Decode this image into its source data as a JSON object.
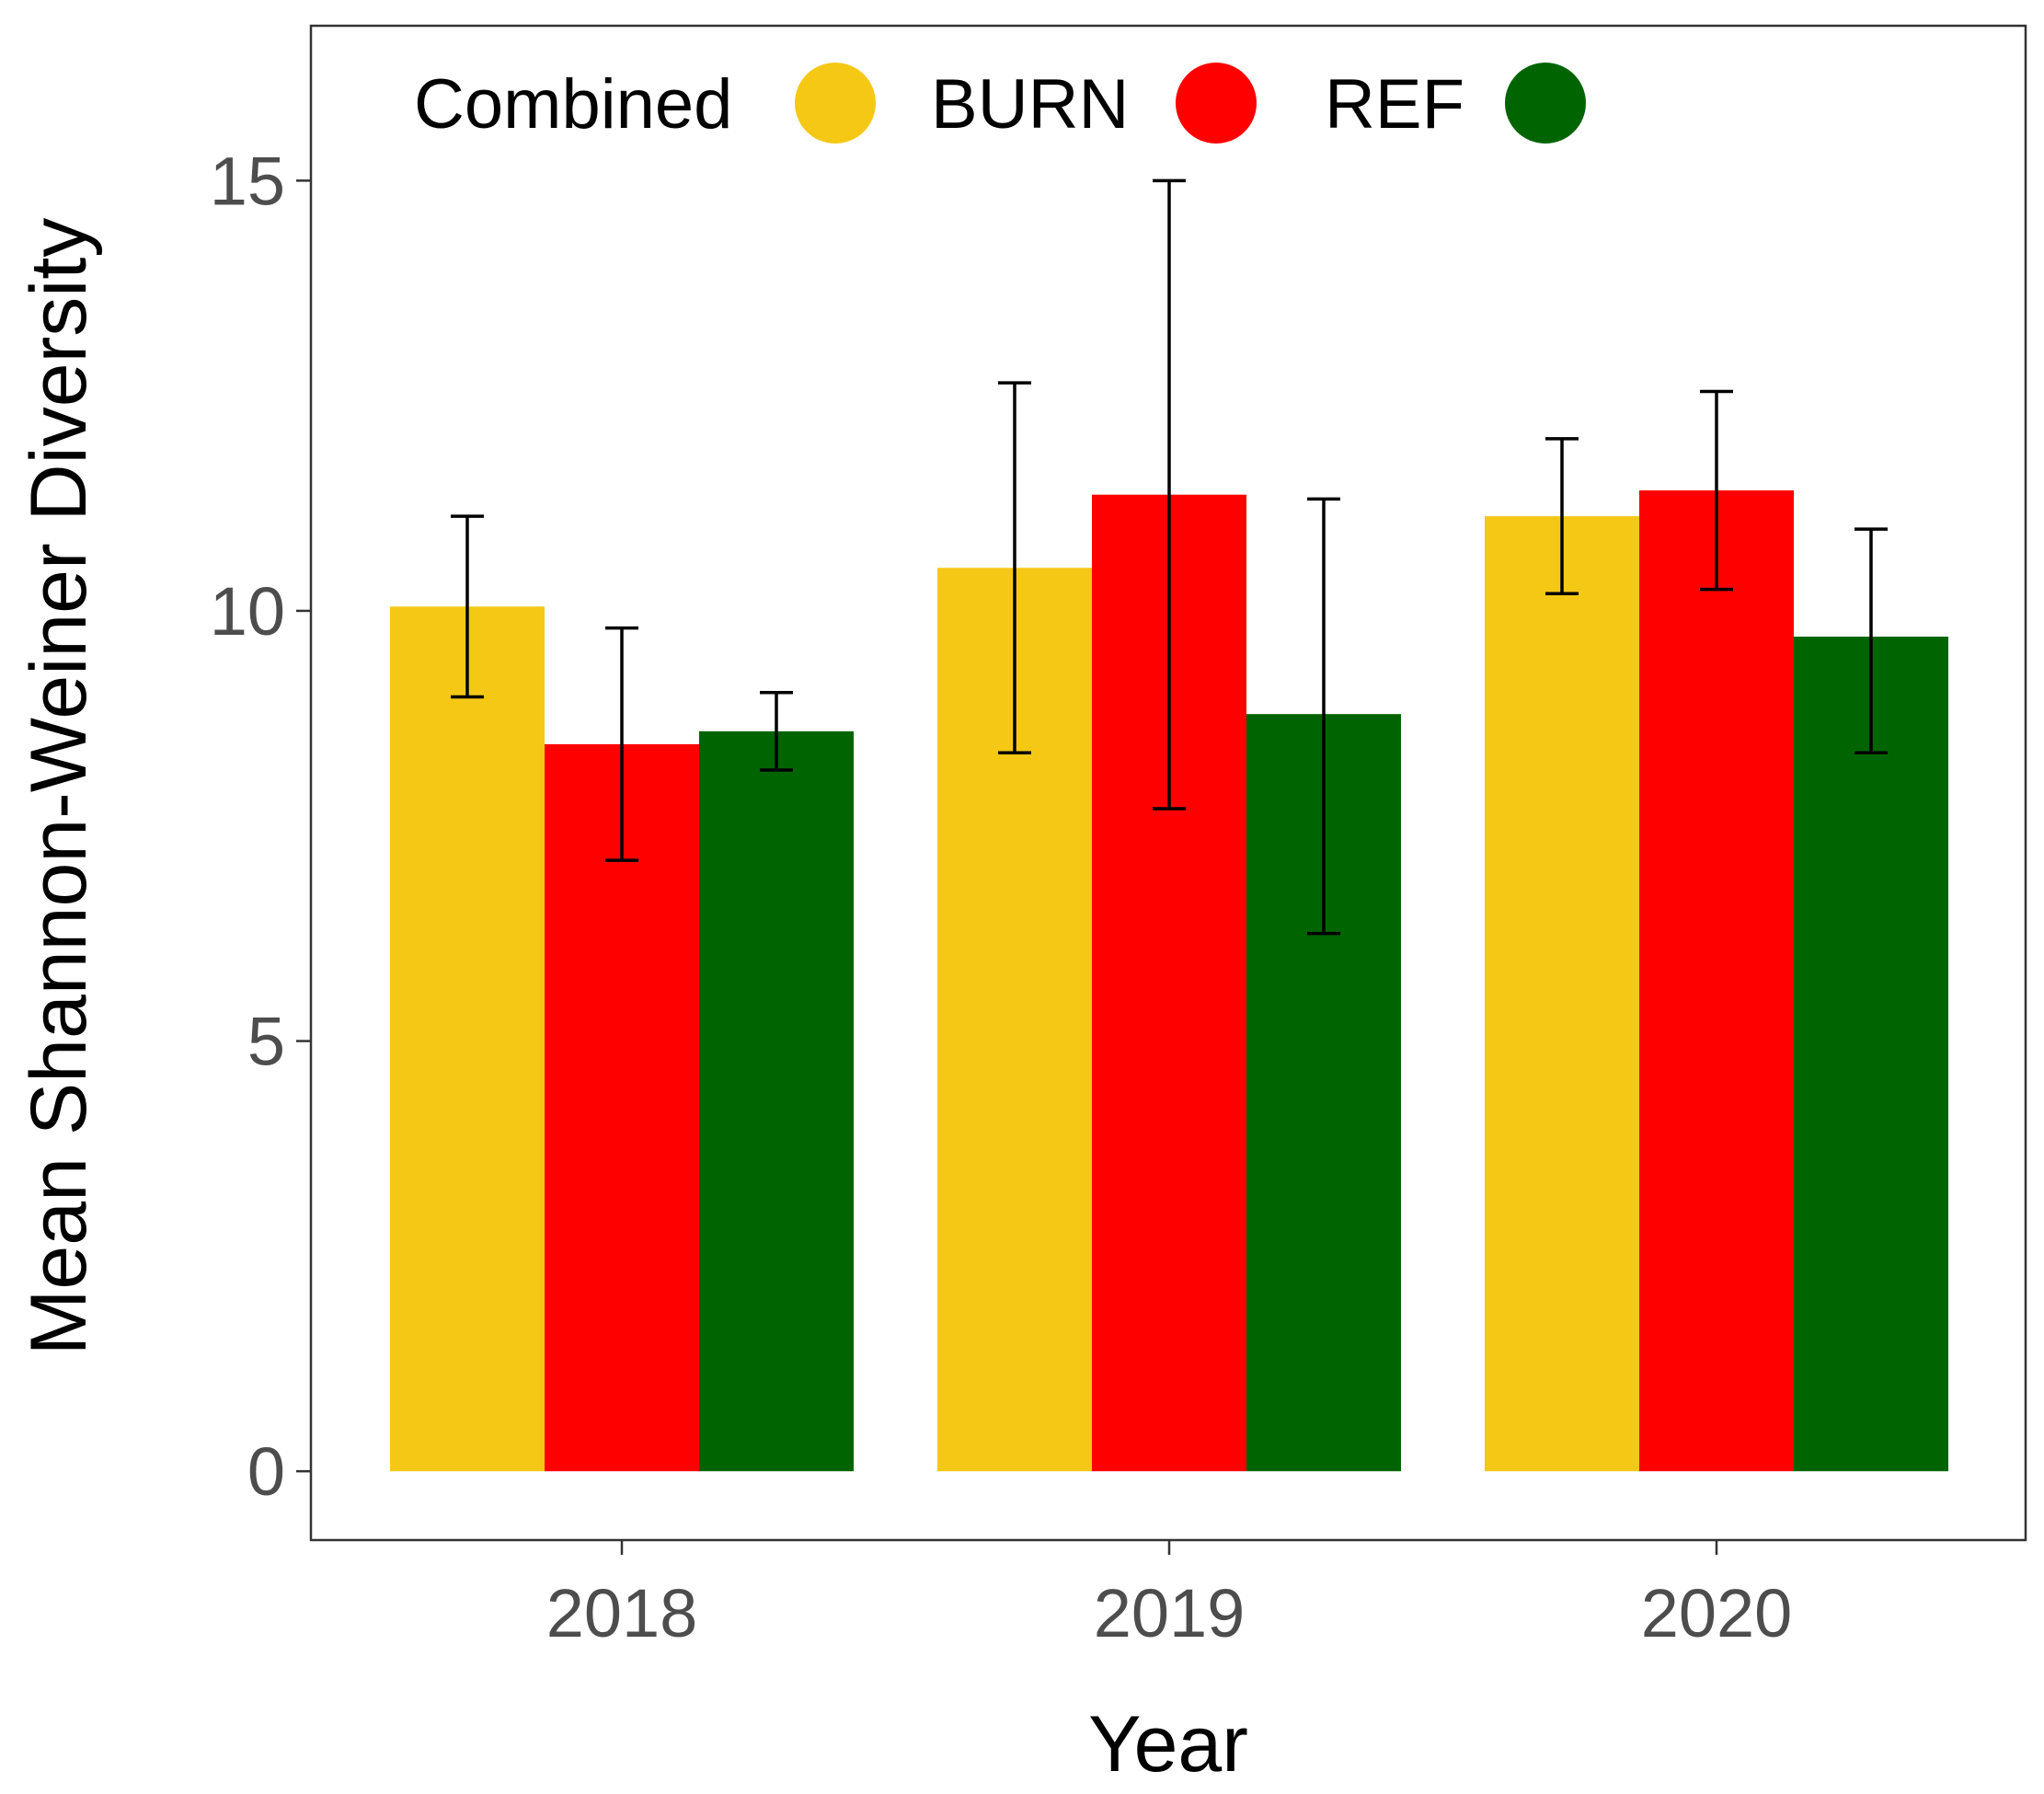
{
  "chart_data": {
    "type": "bar",
    "title": "",
    "xlabel": "Year",
    "ylabel": "Mean Shannon-Weiner Diversity",
    "categories": [
      "2018",
      "2019",
      "2020"
    ],
    "ylim": [
      -0.8,
      16.8
    ],
    "yticks": [
      "0",
      "5",
      "10",
      "15"
    ],
    "ytick_values": [
      0,
      5,
      10,
      15
    ],
    "grid": false,
    "legend_position": "top-left inside",
    "series": [
      {
        "name": "Combined",
        "color": "#F5C816",
        "values": [
          10.05,
          10.5,
          11.1
        ],
        "err_low": [
          9.0,
          8.35,
          10.2
        ],
        "err_high": [
          11.1,
          12.65,
          12.0
        ]
      },
      {
        "name": "BURN",
        "color": "#FF0000",
        "values": [
          8.45,
          11.35,
          11.4
        ],
        "err_low": [
          7.1,
          7.7,
          10.25
        ],
        "err_high": [
          9.8,
          15.0,
          12.55
        ]
      },
      {
        "name": "REF",
        "color": "#006400",
        "values": [
          8.6,
          8.8,
          9.7
        ],
        "err_low": [
          8.15,
          6.25,
          8.35
        ],
        "err_high": [
          9.05,
          11.3,
          10.95
        ]
      }
    ]
  }
}
